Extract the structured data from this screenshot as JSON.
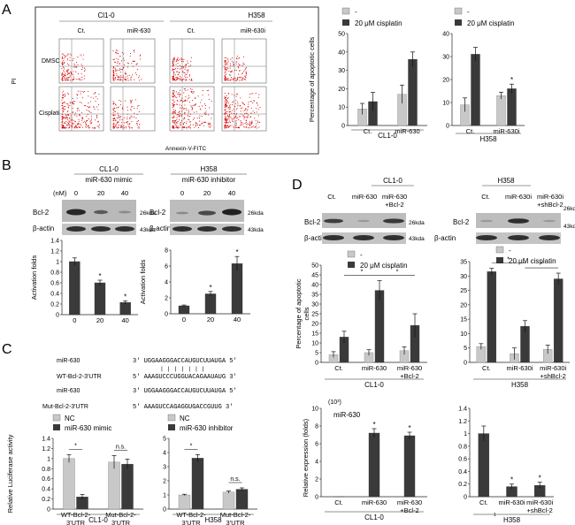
{
  "panels": {
    "A": "A",
    "B": "B",
    "C": "C",
    "D": "D"
  },
  "colors": {
    "light": "#c8c8c8",
    "dark": "#3a3a3a",
    "flow": "#d40000"
  },
  "panelA": {
    "cell_line_1": "Cl1-0",
    "cell_line_2": "H358",
    "col_ct_1": "Ct.",
    "col_mir_1": "miR-630",
    "col_ct_2": "Ct.",
    "col_mir_2": "miR-630i",
    "row_1": "DMSO",
    "row_2": "Cisplatin",
    "y_axis": "PI",
    "x_axis": "Annexin-V-FITC"
  },
  "panelB": {
    "left_title": "CL1-0",
    "left_sub": "miR-630 mimic",
    "right_title": "H358",
    "right_sub": "miR-630 inhibitor",
    "nm": "(nM)",
    "dose_0": "0",
    "dose_20": "20",
    "dose_40": "40",
    "bcl2": "Bcl-2",
    "actin": "β-actin",
    "kda26": "26kda",
    "kda43": "43kda",
    "ylabel": "Activation folds",
    "star": "*"
  },
  "panelC": {
    "row1_label": "miR-630",
    "row1_seq": "3' UGGAAGGGACCAUGUCUUAUGA 5'",
    "row2_label": "WT-Bcl-2-3'UTR",
    "row2_seq": "5' AAAGUCCCUGGUACAGAAUAUG 3'",
    "row3_label": "miR-630",
    "row3_seq": "3' UGGAAGGGACCAUGUCUUAUGA 5'",
    "row4_label": "Mut-Bcl-2-3'UTR",
    "row4_seq": "5' AAAGUCCAGAGGUGACCGUUG 3'",
    "pairing": "| | | | | | |",
    "legend_nc": "NC",
    "legend_mimic": "miR-630 mimic",
    "legend_inhib": "miR-630 inhibitor",
    "ylabel": "Relative Luciferase activity",
    "ns": "n.s.",
    "wt_label_a": "WT-Bcl-2-",
    "wt_label_b": "3'UTR",
    "mut_label_a": "Mut-Bcl-2-",
    "mut_label_b": "3'UTR"
  },
  "panelD": {
    "left_title": "CL1-0",
    "right_title": "H358",
    "ct": "Ct.",
    "mir": "miR-630",
    "mir_bcl": "miR-630",
    "plus_bcl": "+Bcl-2",
    "miri": "miR-630i",
    "miri_sh": "miR-630i",
    "plus_sh": "+shBcl-2",
    "bcl2": "Bcl-2",
    "actin": "β-actin",
    "kda26": "26kda",
    "kda43": "43kda",
    "legend_minus": "-",
    "legend_cis": "20 μM cisplatin",
    "apop_ylabel_1": "Percentage of apoptotic",
    "apop_ylabel_2": "cells",
    "expr_ylabel": "Relative expression (folds)",
    "expr_unit": "(10³)",
    "expr_title": "miR-630",
    "tiny_one": "1"
  },
  "chart_data": [
    {
      "id": "A-apoptosis-CL1-0",
      "type": "bar",
      "title": "",
      "ylabel": "Percentage of apoptotic cells",
      "xlabel": "CL1-0",
      "ylim": [
        0,
        50
      ],
      "yticks": [
        "0",
        "10",
        "20",
        "30",
        "40",
        "50"
      ],
      "categories": [
        "Ct.",
        "miR-630"
      ],
      "legend": [
        "-",
        "20 μM cisplatin"
      ],
      "series": [
        {
          "name": "-",
          "values": [
            9,
            17
          ],
          "errors": [
            3,
            5
          ]
        },
        {
          "name": "20 μM cisplatin",
          "values": [
            13,
            36
          ],
          "errors": [
            5,
            4
          ]
        }
      ]
    },
    {
      "id": "A-apoptosis-H358",
      "type": "bar",
      "title": "",
      "ylabel": "",
      "xlabel": "H358",
      "ylim": [
        0,
        40
      ],
      "yticks": [
        "0",
        "10",
        "20",
        "30",
        "40"
      ],
      "categories": [
        "Ct.",
        "miR-630i"
      ],
      "legend": [
        "-",
        "20 μM cisplatin"
      ],
      "stars": [
        "",
        "*"
      ],
      "series": [
        {
          "name": "-",
          "values": [
            9,
            13
          ],
          "errors": [
            3,
            1.5
          ]
        },
        {
          "name": "20 μM cisplatin",
          "values": [
            31,
            16
          ],
          "errors": [
            3,
            2
          ]
        }
      ]
    },
    {
      "id": "B-activation-CL1-0",
      "type": "bar",
      "title": "",
      "ylabel": "Activation folds",
      "ylim": [
        0,
        1.4
      ],
      "yticks": [
        "0",
        "0.2",
        "0.4",
        "0.6",
        "0.8",
        "1",
        "1.2",
        "1.4"
      ],
      "categories": [
        "0",
        "20",
        "40"
      ],
      "stars": [
        "",
        "*",
        "*"
      ],
      "series": [
        {
          "name": "Bcl-2",
          "values": [
            1.0,
            0.6,
            0.23
          ],
          "errors": [
            0.07,
            0.05,
            0.03
          ]
        }
      ]
    },
    {
      "id": "B-activation-H358",
      "type": "bar",
      "title": "",
      "ylabel": "Activation folds",
      "ylim": [
        0,
        8
      ],
      "yticks": [
        "0",
        "2",
        "4",
        "6",
        "8"
      ],
      "categories": [
        "0",
        "20",
        "40"
      ],
      "stars": [
        "",
        "*",
        "*"
      ],
      "series": [
        {
          "name": "Bcl-2",
          "values": [
            1.0,
            2.5,
            6.3
          ],
          "errors": [
            0.1,
            0.3,
            0.9
          ]
        }
      ]
    },
    {
      "id": "C-luciferase-CL1-0",
      "type": "bar",
      "title": "",
      "ylabel": "Relative Luciferase activity",
      "xlabel": "CL1-0",
      "ylim": [
        0,
        1.4
      ],
      "yticks": [
        "0",
        "0.2",
        "0.4",
        "0.6",
        "0.8",
        "1",
        "1.2",
        "1.4"
      ],
      "categories": [
        "WT-Bcl-2-3'UTR",
        "Mut-Bcl-2-3'UTR"
      ],
      "legend": [
        "NC",
        "miR-630 mimic"
      ],
      "brackets": [
        "*",
        "n.s."
      ],
      "series": [
        {
          "name": "NC",
          "values": [
            1.0,
            0.93
          ],
          "errors": [
            0.08,
            0.13
          ]
        },
        {
          "name": "miR-630 mimic",
          "values": [
            0.24,
            0.89
          ],
          "errors": [
            0.05,
            0.1
          ]
        }
      ]
    },
    {
      "id": "C-luciferase-H358",
      "type": "bar",
      "title": "",
      "ylabel": "",
      "xlabel": "H358",
      "ylim": [
        0,
        5
      ],
      "yticks": [
        "0",
        "1",
        "2",
        "3",
        "4",
        "5"
      ],
      "categories": [
        "WT-Bcl-2-3'UTR",
        "Mut-Bcl-2-3'UTR"
      ],
      "legend": [
        "NC",
        "miR-630 inhibitor"
      ],
      "brackets": [
        "*",
        "n.s."
      ],
      "series": [
        {
          "name": "NC",
          "values": [
            1.0,
            1.2
          ],
          "errors": [
            0.05,
            0.08
          ]
        },
        {
          "name": "miR-630 inhibitor",
          "values": [
            3.6,
            1.4
          ],
          "errors": [
            0.25,
            0.1
          ]
        }
      ]
    },
    {
      "id": "D-apoptosis-CL1-0",
      "type": "bar",
      "title": "",
      "ylabel": "Percentage of apoptotic cells",
      "xlabel": "CL1-0",
      "ylim": [
        0,
        50
      ],
      "yticks": [
        "0",
        "5",
        "10",
        "15",
        "20",
        "25",
        "30",
        "35",
        "40",
        "45",
        "50"
      ],
      "categories": [
        "Ct.",
        "miR-630",
        "miR-630 +Bcl-2"
      ],
      "legend": [
        "-",
        "20 μM cisplatin"
      ],
      "brackets": [
        "*",
        "*"
      ],
      "series": [
        {
          "name": "-",
          "values": [
            4,
            5,
            6
          ],
          "errors": [
            1.5,
            1.5,
            2
          ]
        },
        {
          "name": "20 μM cisplatin",
          "values": [
            13,
            37,
            19
          ],
          "errors": [
            3,
            5,
            6
          ]
        }
      ]
    },
    {
      "id": "D-apoptosis-H358",
      "type": "bar",
      "title": "",
      "ylabel": "",
      "xlabel": "H358",
      "ylim": [
        0,
        35
      ],
      "yticks": [
        "0",
        "5",
        "10",
        "15",
        "20",
        "25",
        "30",
        "35"
      ],
      "categories": [
        "Ct.",
        "miR-630i",
        "miR-630i +shBcl-2"
      ],
      "legend": [
        "-",
        "20 μM cisplatin"
      ],
      "brackets": [
        "*",
        "*"
      ],
      "series": [
        {
          "name": "-",
          "values": [
            5.5,
            3,
            4.5
          ],
          "errors": [
            1,
            2,
            1.5
          ]
        },
        {
          "name": "20 μM cisplatin",
          "values": [
            31.5,
            12.5,
            29
          ],
          "errors": [
            1.2,
            2,
            2
          ]
        }
      ]
    },
    {
      "id": "D-expression-CL1-0",
      "type": "bar",
      "title": "miR-630",
      "ylabel": "Relative expression (folds)",
      "xlabel": "CL1-0",
      "ylim": [
        0,
        10
      ],
      "yticks": [
        "0",
        "2",
        "4",
        "6",
        "8",
        "10"
      ],
      "categories": [
        "Ct.",
        "miR-630",
        "miR-630 +Bcl-2"
      ],
      "stars": [
        "",
        "*",
        "*"
      ],
      "series": [
        {
          "name": "miR-630",
          "values": [
            0.001,
            7.2,
            6.9
          ],
          "errors": [
            0,
            0.5,
            0.4
          ]
        }
      ]
    },
    {
      "id": "D-expression-H358",
      "type": "bar",
      "title": "",
      "ylabel": "",
      "xlabel": "H358",
      "ylim": [
        0,
        1.4
      ],
      "yticks": [
        "0",
        "0.2",
        "0.4",
        "0.6",
        "0.8",
        "1",
        "1.2",
        "1.4"
      ],
      "categories": [
        "Ct.",
        "miR-630i",
        "miR-630i +shBcl-2"
      ],
      "stars": [
        "",
        "*",
        "*"
      ],
      "series": [
        {
          "name": "miR-630",
          "values": [
            1.0,
            0.16,
            0.18
          ],
          "errors": [
            0.12,
            0.04,
            0.05
          ]
        }
      ]
    }
  ]
}
